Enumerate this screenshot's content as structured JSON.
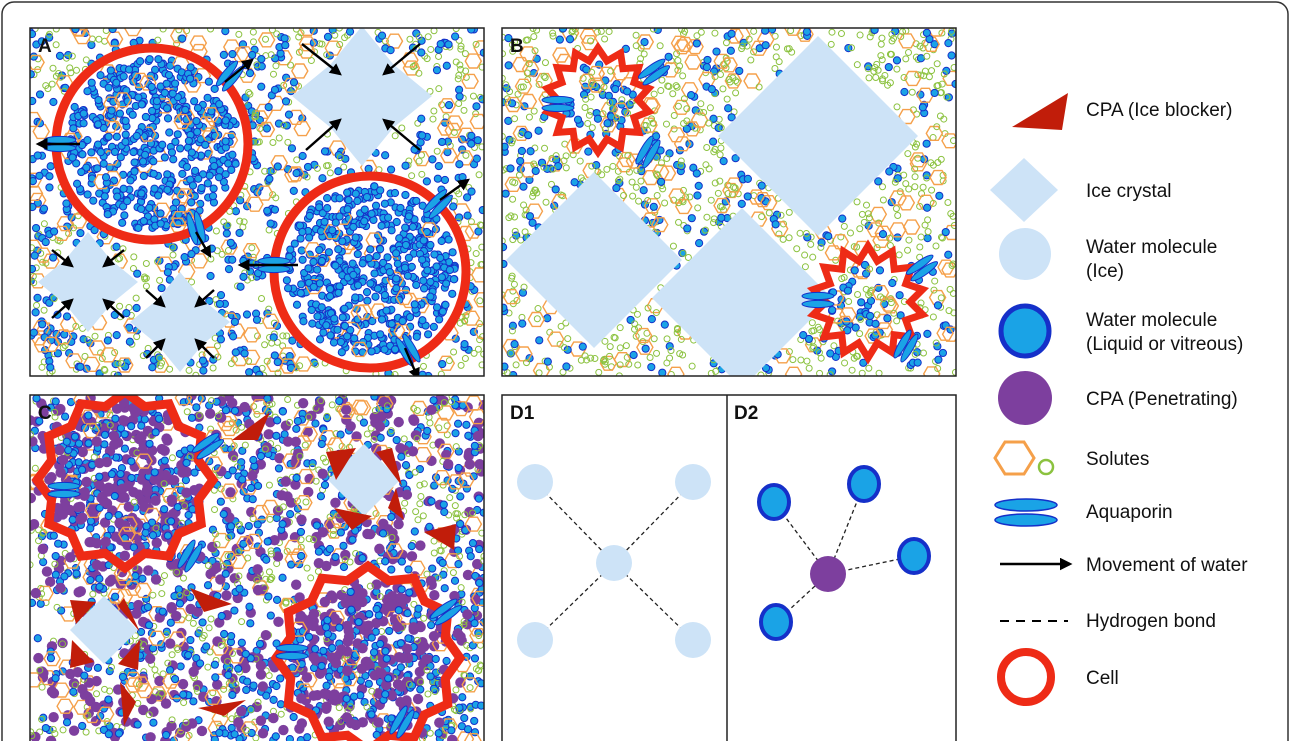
{
  "panels": {
    "a": "A",
    "b": "B",
    "c": "C",
    "d1": "D1",
    "d2": "D2"
  },
  "legend": [
    {
      "id": "cpa-blocker",
      "lines": [
        "CPA (Ice blocker)"
      ],
      "icon": "red-triangle-icon"
    },
    {
      "id": "ice-crystal",
      "lines": [
        "Ice crystal"
      ],
      "icon": "light-blue-diamond-icon"
    },
    {
      "id": "water-ice",
      "lines": [
        "Water molecule",
        "(Ice)"
      ],
      "icon": "light-blue-circle-icon"
    },
    {
      "id": "water-liquid",
      "lines": [
        "Water molecule",
        "(Liquid or vitreous)"
      ],
      "icon": "blue-outlined-circle-icon"
    },
    {
      "id": "cpa-penetrating",
      "lines": [
        "CPA (Penetrating)"
      ],
      "icon": "purple-circle-icon"
    },
    {
      "id": "solutes",
      "lines": [
        "Solutes"
      ],
      "icon": "hexagon-and-circle-icon"
    },
    {
      "id": "aquaporin",
      "lines": [
        "Aquaporin"
      ],
      "icon": "aquaporin-icon"
    },
    {
      "id": "movement",
      "lines": [
        "Movement of water"
      ],
      "icon": "arrow-icon"
    },
    {
      "id": "hbond",
      "lines": [
        "Hydrogen bond"
      ],
      "icon": "dashed-line-icon"
    },
    {
      "id": "cell",
      "lines": [
        "Cell"
      ],
      "icon": "red-ring-icon"
    }
  ],
  "colors": {
    "cell_red": "#ee2b16",
    "ice_light_blue": "#cde3f7",
    "water_blue": "#1aa3e6",
    "water_outline": "#1530c9",
    "cpa_purple": "#7d3f9e",
    "cpa_blocker_red": "#c11d0a",
    "solute_orange": "#f5a04a",
    "solute_green": "#8bc23f",
    "arrow_black": "#000000"
  }
}
